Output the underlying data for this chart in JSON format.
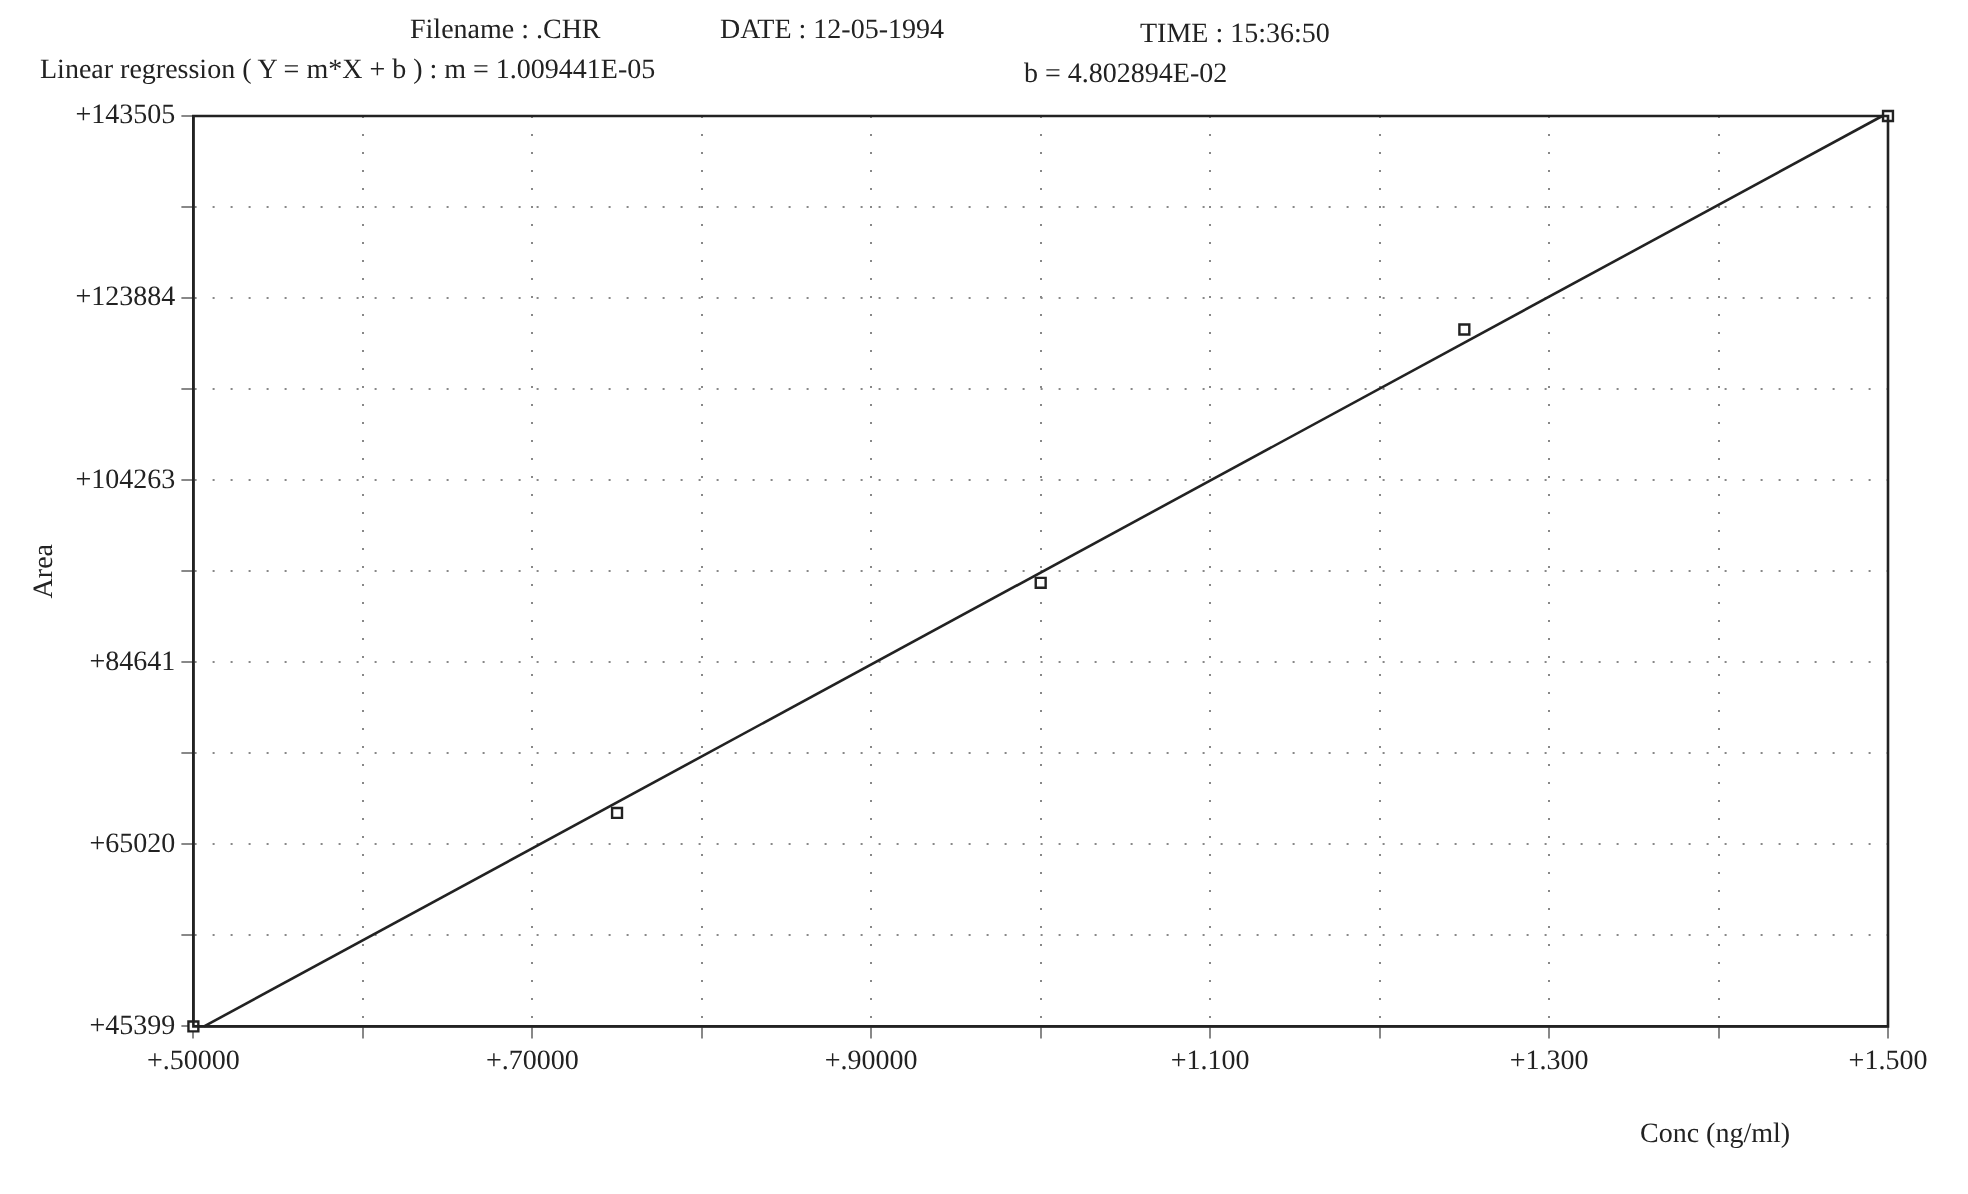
{
  "chart_data": {
    "type": "scatter",
    "annotations": [
      "Filename : .CHR",
      "DATE : 12-05-1994",
      "TIME : 15:36:50",
      "Linear regression ( Y = m*X + b ) : m = 1.009441E-05",
      "b = 4.802894E-02"
    ],
    "xlabel": "Conc (ng/ml)",
    "ylabel": "Area",
    "xlim": [
      0.5,
      1.5
    ],
    "xticks": [
      {
        "value": 0.5,
        "label": "+.50000"
      },
      {
        "value": 0.6,
        "label": null
      },
      {
        "value": 0.7,
        "label": "+.70000"
      },
      {
        "value": 0.8,
        "label": null
      },
      {
        "value": 0.9,
        "label": "+.90000"
      },
      {
        "value": 1.0,
        "label": null
      },
      {
        "value": 1.1,
        "label": "+1.100"
      },
      {
        "value": 1.2,
        "label": null
      },
      {
        "value": 1.3,
        "label": "+1.300"
      },
      {
        "value": 1.4,
        "label": null
      },
      {
        "value": 1.5,
        "label": "+1.500"
      }
    ],
    "ylim": [
      45399,
      143505
    ],
    "yticks": [
      {
        "value": 45399,
        "label": "+45399"
      },
      {
        "value": 55210,
        "label": null
      },
      {
        "value": 65020,
        "label": "+65020"
      },
      {
        "value": 74831,
        "label": null
      },
      {
        "value": 84641,
        "label": "+84641"
      },
      {
        "value": 94452,
        "label": null
      },
      {
        "value": 104263,
        "label": "+104263"
      },
      {
        "value": 114074,
        "label": null
      },
      {
        "value": 123884,
        "label": "+123884"
      },
      {
        "value": 133695,
        "label": null
      },
      {
        "value": 143505,
        "label": "+143505"
      }
    ],
    "grid": true,
    "marker": "square",
    "series": [
      {
        "type": "scatter",
        "color": "#222222",
        "x": [
          0.5,
          0.75,
          1.0,
          1.25,
          1.5
        ],
        "values": [
          45399,
          68400,
          93200,
          120500,
          143505
        ]
      },
      {
        "type": "line",
        "color": "#222222",
        "marker": "none",
        "x": [
          0.5063,
          1.4966
        ],
        "values": [
          45399,
          143505
        ]
      }
    ]
  }
}
